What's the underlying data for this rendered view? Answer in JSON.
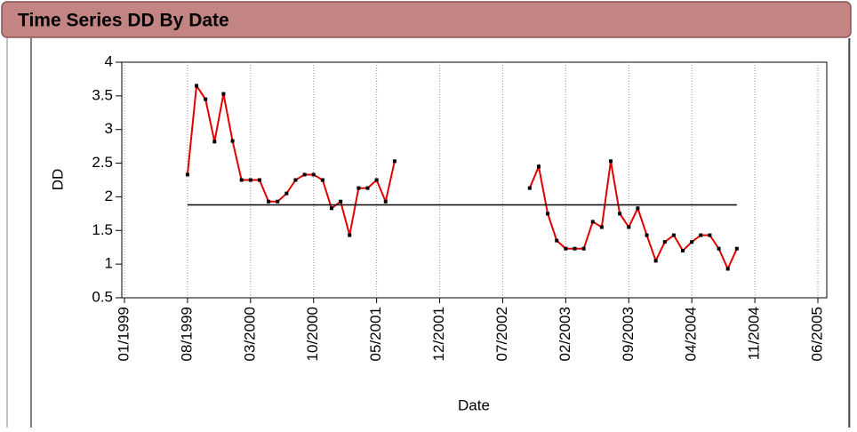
{
  "chart_data": {
    "type": "line",
    "title": "Time Series DD By Date",
    "xlabel": "Date",
    "ylabel": "DD",
    "x": [
      "08/1999",
      "09/1999",
      "10/1999",
      "11/1999",
      "12/1999",
      "01/2000",
      "02/2000",
      "03/2000",
      "04/2000",
      "05/2000",
      "06/2000",
      "07/2000",
      "08/2000",
      "09/2000",
      "10/2000",
      "11/2000",
      "12/2000",
      "01/2001",
      "02/2001",
      "03/2001",
      "04/2001",
      "05/2001",
      "06/2001",
      "07/2001",
      "08/2001",
      "10/2002",
      "11/2002",
      "12/2002",
      "01/2003",
      "02/2003",
      "03/2003",
      "04/2003",
      "05/2003",
      "06/2003",
      "07/2003",
      "08/2003",
      "09/2003",
      "10/2003",
      "11/2003",
      "12/2003",
      "01/2004",
      "02/2004",
      "03/2004",
      "04/2004",
      "05/2004",
      "06/2004",
      "07/2004",
      "08/2004",
      "09/2004"
    ],
    "series": [
      {
        "name": "DD",
        "color": "#e00000",
        "point_color": "#000000",
        "values": [
          2.33,
          3.65,
          3.45,
          2.82,
          3.53,
          2.83,
          2.25,
          2.25,
          2.25,
          1.93,
          1.93,
          2.05,
          2.25,
          2.33,
          2.33,
          2.25,
          1.83,
          1.93,
          1.43,
          2.13,
          2.13,
          2.25,
          1.93,
          2.53,
          null,
          2.13,
          2.45,
          1.75,
          1.35,
          1.23,
          1.23,
          1.23,
          1.63,
          1.55,
          2.53,
          1.75,
          1.55,
          1.83,
          1.43,
          1.05,
          1.33,
          1.43,
          1.2,
          1.33,
          1.43,
          1.43,
          1.23,
          0.93,
          1.23
        ]
      }
    ],
    "reference_line": 1.88,
    "xlim": [
      "01/1999",
      "06/2005"
    ],
    "xticks": [
      "01/1999",
      "08/1999",
      "03/2000",
      "10/2000",
      "05/2001",
      "12/2001",
      "07/2002",
      "02/2003",
      "09/2003",
      "04/2004",
      "11/2004",
      "06/2005"
    ],
    "ylim": [
      0.5,
      4
    ],
    "yticks": [
      0.5,
      1,
      1.5,
      2,
      2.5,
      3,
      3.5,
      4
    ],
    "xgrid": true
  }
}
